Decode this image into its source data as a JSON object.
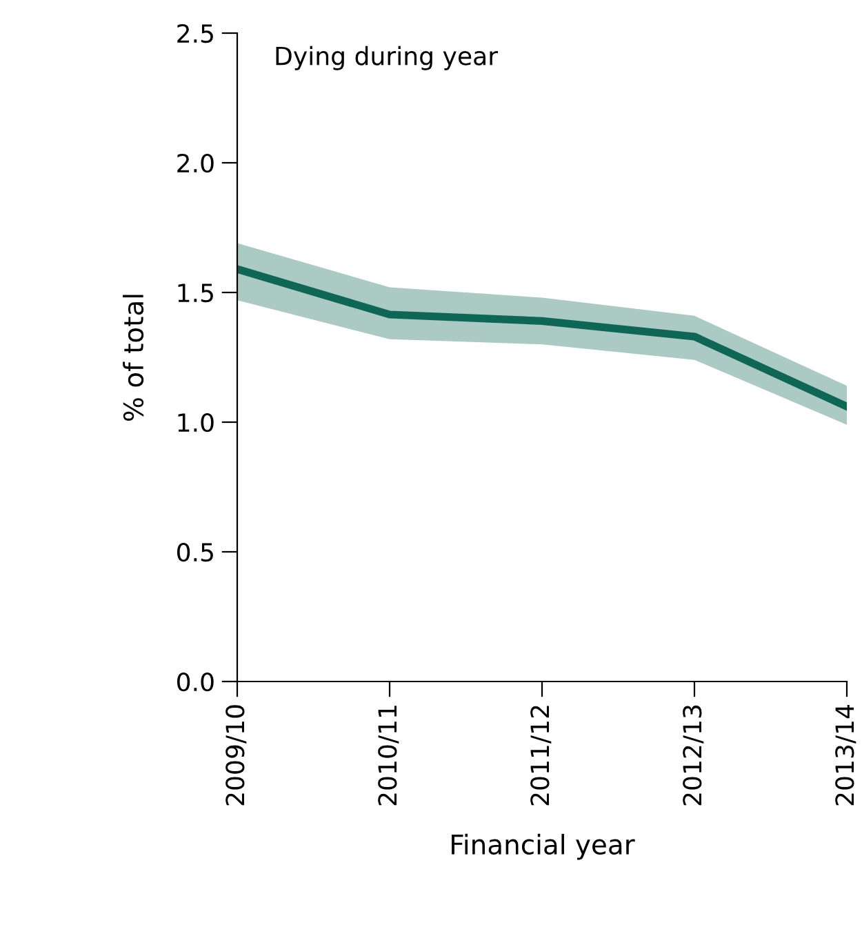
{
  "chart_data": {
    "type": "line",
    "categories": [
      "2009/10",
      "2010/11",
      "2011/12",
      "2012/13",
      "2013/14"
    ],
    "series": [
      {
        "color": "#0e6655",
        "values": [
          1.59,
          1.415,
          1.39,
          1.33,
          1.06
        ],
        "lower": [
          1.47,
          1.32,
          1.3,
          1.24,
          0.99
        ],
        "upper": [
          1.69,
          1.52,
          1.48,
          1.41,
          1.14
        ]
      }
    ],
    "annotations": [
      "Dying during year"
    ],
    "xlabel": "Financial year",
    "ylabel": "% of total",
    "ylim": [
      0,
      2.5
    ],
    "yticks": [
      {
        "value": 0,
        "label": "0.0"
      },
      {
        "value": 0.5,
        "label": "0.5"
      },
      {
        "value": 1,
        "label": "1.0"
      },
      {
        "value": 1.5,
        "label": "1.5"
      },
      {
        "value": 2,
        "label": "2.0"
      },
      {
        "value": 2.5,
        "label": "2.5"
      }
    ],
    "grid": false,
    "legend": false
  }
}
